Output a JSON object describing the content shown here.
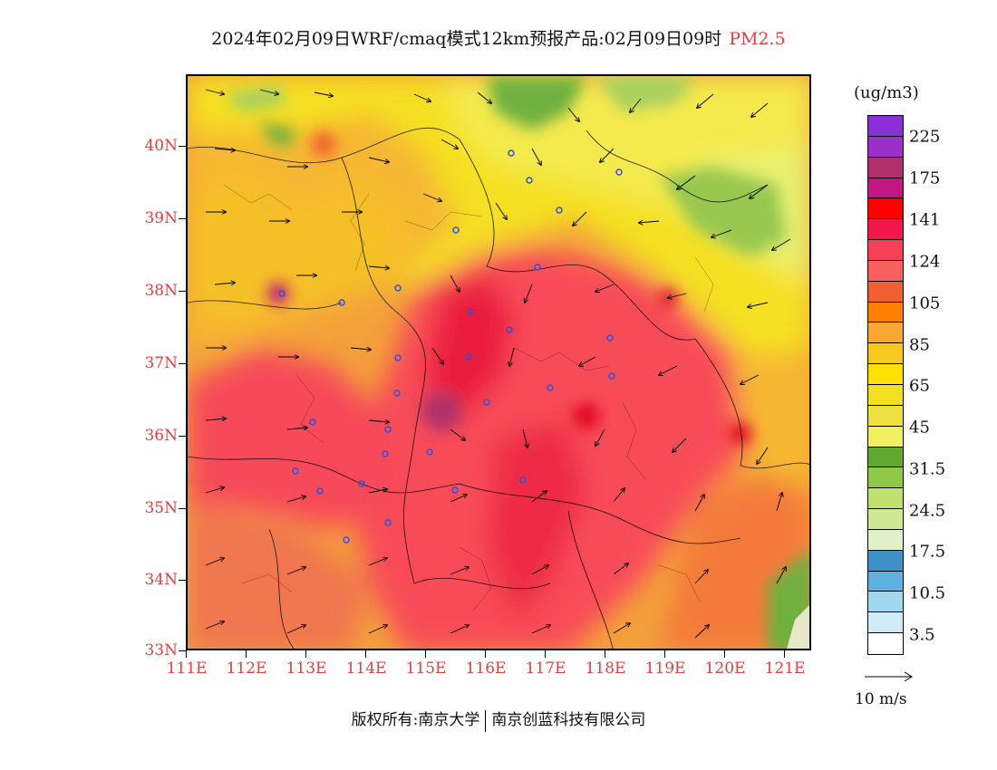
{
  "title": {
    "main": "2024年02月09日WRF/cmaq模式12km预报产品:02月09日09时",
    "variable": "PM2.5"
  },
  "map": {
    "lat_labels": [
      "40N",
      "39N",
      "38N",
      "37N",
      "36N",
      "35N",
      "34N",
      "33N"
    ],
    "lon_labels": [
      "111E",
      "112E",
      "113E",
      "114E",
      "115E",
      "116E",
      "117E",
      "118E",
      "119E",
      "120E",
      "121E"
    ],
    "lat_range": [
      33,
      41
    ],
    "lon_range": [
      111,
      121.5
    ]
  },
  "colorbar": {
    "units": "(ug/m3)",
    "labels": [
      "225",
      "175",
      "141",
      "124",
      "105",
      "85",
      "65",
      "45",
      "31.5",
      "24.5",
      "17.5",
      "10.5",
      "3.5"
    ],
    "colors": [
      "#8b2fd6",
      "#9b30c8",
      "#b0306a",
      "#c01880",
      "#ff0000",
      "#f01848",
      "#f84058",
      "#f86060",
      "#f06030",
      "#ff8000",
      "#f8a830",
      "#f8c820",
      "#ffe000",
      "#f0e020",
      "#eee040",
      "#f0f060",
      "#60a830",
      "#90c848",
      "#c0e070",
      "#d0e890",
      "#e0f0c8",
      "#4090c8",
      "#60b0e0",
      "#a0d8f0",
      "#d0ecf8",
      "#ffffff"
    ],
    "wind_reference": "10 m/s"
  },
  "footer": {
    "copyright_left": "版权所有:南京大学",
    "copyright_right": "南京创蓝科技有限公司"
  }
}
